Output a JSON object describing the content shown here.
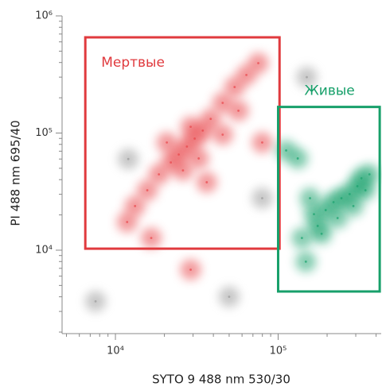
{
  "chart_data": {
    "type": "scatter",
    "log_x": true,
    "log_y": true,
    "x_label": "SYTO 9 488 nm 530/30",
    "y_label": "PI 488 nm 695/40",
    "xlim": [
      4700,
      430000
    ],
    "ylim": [
      1940,
      1000000
    ],
    "xticks": [
      {
        "value": 10000,
        "label": "10⁴"
      },
      {
        "value": 100000,
        "label": "10⁵"
      }
    ],
    "yticks": [
      {
        "value": 10000,
        "label": "10⁴"
      },
      {
        "value": 100000,
        "label": "10⁵"
      },
      {
        "value": 1000000,
        "label": "10⁶"
      }
    ],
    "xminor": [
      5000,
      6000,
      7000,
      8000,
      9000,
      20000,
      30000,
      40000,
      50000,
      60000,
      70000,
      80000,
      90000,
      200000,
      300000,
      400000
    ],
    "yminor": [
      2000,
      3000,
      4000,
      5000,
      6000,
      7000,
      8000,
      9000,
      20000,
      30000,
      40000,
      50000,
      60000,
      70000,
      80000,
      90000,
      200000,
      300000,
      400000,
      500000,
      600000,
      700000,
      800000,
      900000
    ],
    "gates": [
      {
        "label": "Мертвые",
        "color": "#e03a3e",
        "x": [
          6530,
          102000
        ],
        "y": [
          10300,
          656000
        ]
      },
      {
        "label": "Живые",
        "color": "#17a06a",
        "x": [
          100000,
          421000
        ],
        "y": [
          4440,
          167000
        ]
      }
    ],
    "series": [
      {
        "color": "#e8474c",
        "x": [
          18500,
          21900,
          24500,
          27500,
          30700,
          34400,
          38500,
          45600,
          54000,
          63800,
          75500,
          15700,
          13200,
          11800,
          26000,
          32500,
          20700,
          29000,
          45600,
          57000,
          36400,
          79800,
          16600,
          29000
        ],
        "values": [
          44400,
          56100,
          65600,
          76700,
          89700,
          105000,
          132000,
          181000,
          247000,
          313000,
          395000,
          32500,
          23800,
          17400,
          48000,
          60700,
          83000,
          113000,
          96900,
          155000,
          38000,
          83000,
          12700,
          6820
        ]
      },
      {
        "color": "#1aa36e",
        "x": [
          166000,
          175000,
          196000,
          219000,
          245000,
          275000,
          307000,
          325000,
          344000,
          290000,
          185000,
          157000,
          132000,
          140000,
          112000,
          232000,
          364000,
          148000
        ],
        "values": [
          20300,
          16100,
          22000,
          25700,
          27800,
          30100,
          35200,
          41100,
          32500,
          23800,
          13800,
          27800,
          60700,
          12700,
          71000,
          18800,
          44400,
          7980
        ]
      },
      {
        "color": "#9a9a9a",
        "x": [
          7550,
          79800,
          50000,
          12000,
          150000
        ],
        "values": [
          3660,
          27800,
          4000,
          60000,
          300000
        ]
      }
    ]
  }
}
